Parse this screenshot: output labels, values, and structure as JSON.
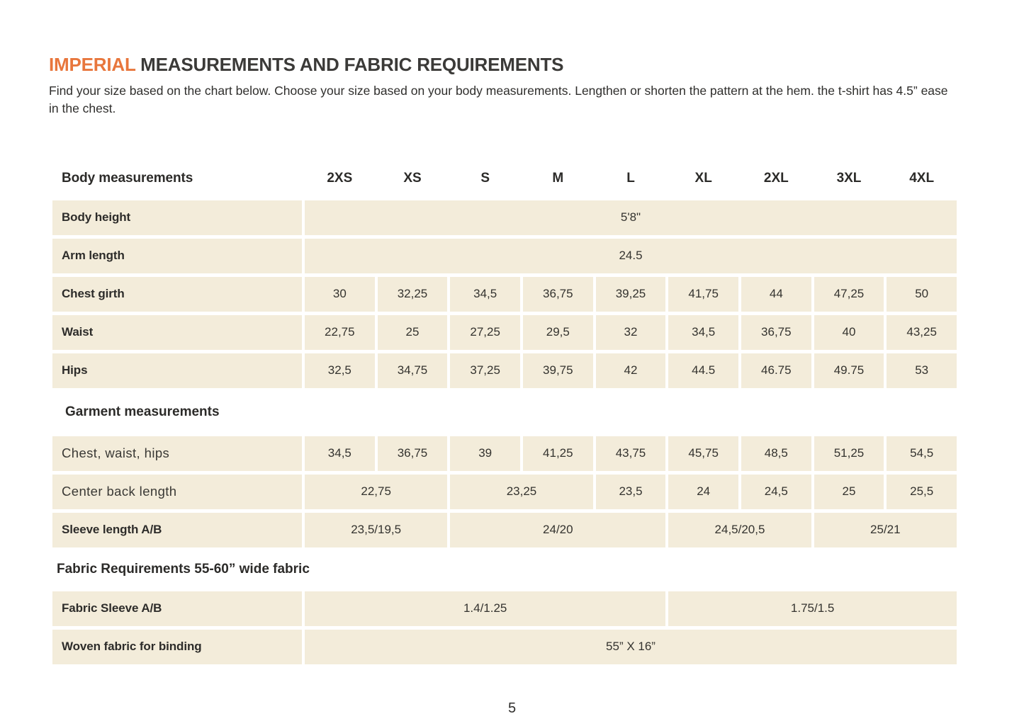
{
  "title": {
    "highlight": "IMPERIAL",
    "rest": " MEASUREMENTS AND FABRIC REQUIREMENTS"
  },
  "intro": "Find your size based on the chart below. Choose your size based on your body measurements. Lengthen or shorten the pattern at the hem. the t-shirt has 4.5” ease in the chest.",
  "colors": {
    "accent": "#e8763c",
    "cell_bg": "#f3ecda",
    "text": "#2f2e2c"
  },
  "size_table": {
    "header_label": "Body measurements",
    "sizes": [
      "2XS",
      "XS",
      "S",
      "M",
      "L",
      "XL",
      "2XL",
      "3XL",
      "4XL"
    ],
    "sections": [
      {
        "heading": "",
        "rows": [
          {
            "label": "Body height",
            "cells": [
              {
                "value": "5'8\"",
                "span": 9
              }
            ]
          },
          {
            "label": "Arm length",
            "cells": [
              {
                "value": "24.5",
                "span": 9
              }
            ]
          },
          {
            "label": "Chest girth",
            "cells": [
              {
                "value": "30",
                "span": 1
              },
              {
                "value": "32,25",
                "span": 1
              },
              {
                "value": "34,5",
                "span": 1
              },
              {
                "value": "36,75",
                "span": 1
              },
              {
                "value": "39,25",
                "span": 1
              },
              {
                "value": "41,75",
                "span": 1
              },
              {
                "value": "44",
                "span": 1
              },
              {
                "value": "47,25",
                "span": 1
              },
              {
                "value": "50",
                "span": 1
              }
            ]
          },
          {
            "label": "Waist",
            "cells": [
              {
                "value": "22,75",
                "span": 1
              },
              {
                "value": "25",
                "span": 1
              },
              {
                "value": "27,25",
                "span": 1
              },
              {
                "value": "29,5",
                "span": 1
              },
              {
                "value": "32",
                "span": 1
              },
              {
                "value": "34,5",
                "span": 1
              },
              {
                "value": "36,75",
                "span": 1
              },
              {
                "value": "40",
                "span": 1
              },
              {
                "value": "43,25",
                "span": 1
              }
            ]
          },
          {
            "label": "Hips",
            "cells": [
              {
                "value": "32,5",
                "span": 1
              },
              {
                "value": "34,75",
                "span": 1
              },
              {
                "value": "37,25",
                "span": 1
              },
              {
                "value": "39,75",
                "span": 1
              },
              {
                "value": "42",
                "span": 1
              },
              {
                "value": "44.5",
                "span": 1
              },
              {
                "value": "46.75",
                "span": 1
              },
              {
                "value": "49.75",
                "span": 1
              },
              {
                "value": "53",
                "span": 1
              }
            ]
          }
        ]
      },
      {
        "heading": "Garment measurements",
        "rows": [
          {
            "label": "Chest, waist, hips",
            "light": true,
            "cells": [
              {
                "value": "34,5",
                "span": 1
              },
              {
                "value": "36,75",
                "span": 1
              },
              {
                "value": "39",
                "span": 1
              },
              {
                "value": "41,25",
                "span": 1
              },
              {
                "value": "43,75",
                "span": 1
              },
              {
                "value": "45,75",
                "span": 1
              },
              {
                "value": "48,5",
                "span": 1
              },
              {
                "value": "51,25",
                "span": 1
              },
              {
                "value": "54,5",
                "span": 1
              }
            ]
          },
          {
            "label": "Center back length",
            "light": true,
            "cells": [
              {
                "value": "22,75",
                "span": 2
              },
              {
                "value": "23,25",
                "span": 2
              },
              {
                "value": "23,5",
                "span": 1
              },
              {
                "value": "24",
                "span": 1
              },
              {
                "value": "24,5",
                "span": 1
              },
              {
                "value": "25",
                "span": 1
              },
              {
                "value": "25,5",
                "span": 1
              }
            ]
          },
          {
            "label": "Sleeve length A/B",
            "cells": [
              {
                "value": "23,5/19,5",
                "span": 2
              },
              {
                "value": "24/20",
                "span": 3
              },
              {
                "value": "24,5/20,5",
                "span": 2
              },
              {
                "value": "25/21",
                "span": 2
              }
            ]
          }
        ]
      },
      {
        "heading": "Fabric Requirements 55-60” wide fabric",
        "rows": [
          {
            "label": "Fabric Sleeve A/B",
            "cells": [
              {
                "value": "1.4/1.25",
                "span": 5
              },
              {
                "value": "1.75/1.5",
                "span": 4
              }
            ]
          },
          {
            "label": "Woven fabric for binding",
            "cells": [
              {
                "value": "55” X 16”",
                "span": 9
              }
            ]
          }
        ]
      }
    ]
  },
  "footer": {
    "page_number": "5"
  }
}
